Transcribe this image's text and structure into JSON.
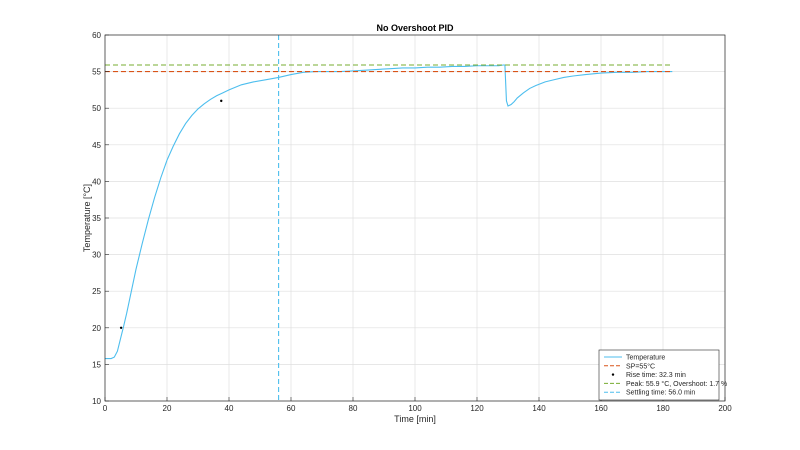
{
  "chart_data": {
    "type": "line",
    "title": "No Overshoot PID",
    "xlabel": "Time [min]",
    "ylabel": "Temperature [°C]",
    "xlim": [
      0,
      200
    ],
    "ylim": [
      10,
      60
    ],
    "xticks": [
      0,
      20,
      40,
      60,
      80,
      100,
      120,
      140,
      160,
      180,
      200
    ],
    "yticks": [
      10,
      15,
      20,
      25,
      30,
      35,
      40,
      45,
      50,
      55,
      60
    ],
    "grid": true,
    "legend_position": "bottom-right",
    "series": [
      {
        "name": "Temperature",
        "color": "#4DBEEE",
        "x": [
          0,
          1,
          2,
          3,
          4,
          5,
          6,
          7,
          8,
          10,
          12,
          14,
          16,
          18,
          20,
          22,
          24,
          26,
          28,
          30,
          32,
          34,
          36,
          38,
          40,
          44,
          48,
          52,
          56,
          60,
          64,
          68,
          72,
          76,
          80,
          84,
          88,
          92,
          96,
          100,
          104,
          108,
          112,
          116,
          120,
          124,
          127,
          128.5,
          129,
          129.5,
          130,
          131,
          132,
          133,
          135,
          137,
          139,
          142,
          145,
          148,
          151,
          155,
          160,
          165,
          170,
          175,
          180,
          183
        ],
        "y": [
          15.8,
          15.8,
          15.8,
          16.0,
          16.8,
          18.5,
          20.2,
          22.0,
          24.0,
          28.0,
          31.5,
          34.8,
          37.8,
          40.5,
          42.9,
          44.8,
          46.5,
          47.9,
          49.0,
          49.9,
          50.6,
          51.2,
          51.7,
          52.1,
          52.5,
          53.2,
          53.6,
          53.9,
          54.2,
          54.6,
          54.9,
          55.0,
          55.0,
          55.0,
          55.1,
          55.2,
          55.3,
          55.4,
          55.5,
          55.5,
          55.6,
          55.6,
          55.7,
          55.7,
          55.8,
          55.8,
          55.8,
          55.9,
          55.9,
          51.0,
          50.3,
          50.5,
          50.9,
          51.4,
          52.1,
          52.7,
          53.1,
          53.6,
          53.9,
          54.2,
          54.4,
          54.6,
          54.8,
          54.9,
          54.9,
          55.0,
          55.0,
          55.0
        ]
      },
      {
        "name": "SP=55°C",
        "color": "#D95319",
        "style": "dashed",
        "y_const": 55
      },
      {
        "name": "Rise time: 32.3 min",
        "color": "#000000",
        "style": "markers",
        "points": [
          [
            5.2,
            20.0
          ],
          [
            37.5,
            51.0
          ]
        ]
      },
      {
        "name": "Peak: 55.9 °C, Overshoot: 1.7 %",
        "color": "#77AC30",
        "style": "dashed",
        "y_const": 55.9
      },
      {
        "name": "Settling time: 56.0 min",
        "color": "#4DBEEE",
        "style": "dashed",
        "x_const": 56.0
      }
    ]
  }
}
